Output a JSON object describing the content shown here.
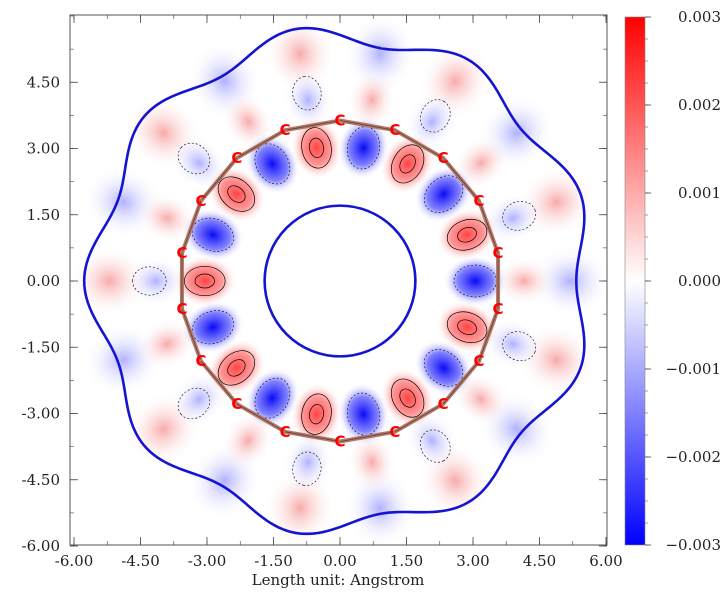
{
  "chart_data": {
    "type": "heatmap",
    "title": "",
    "xlabel": "Length unit: Angstrom",
    "ylabel": "",
    "xlim": [
      -6.0,
      6.0
    ],
    "ylim": [
      -6.0,
      6.0
    ],
    "x_ticks": [
      "-6.00",
      "-4.50",
      "-3.00",
      "-1.50",
      "0.00",
      "1.50",
      "3.00",
      "4.50",
      "6.00"
    ],
    "y_ticks": [
      "4.50",
      "3.00",
      "1.50",
      "0.00",
      "-1.50",
      "-3.00",
      "-4.50",
      "-6.00"
    ],
    "colorbar": {
      "min": -0.003,
      "max": 0.003,
      "ticks": [
        "0.003",
        "0.002",
        "0.001",
        "0.000",
        "−0.001",
        "−0.002",
        "−0.003"
      ],
      "colors": {
        "max": "#ff0000",
        "mid": "#ffffff",
        "min": "#0000ff"
      }
    },
    "atom_label": "C",
    "atom_count": 18,
    "ring_radius": 3.62,
    "colors": {
      "outer_contour": "#1414d2",
      "bond": "#b07a6a",
      "atom": "#ff0000",
      "positive": "#f33b3b",
      "negative": "#0a0af5"
    }
  }
}
